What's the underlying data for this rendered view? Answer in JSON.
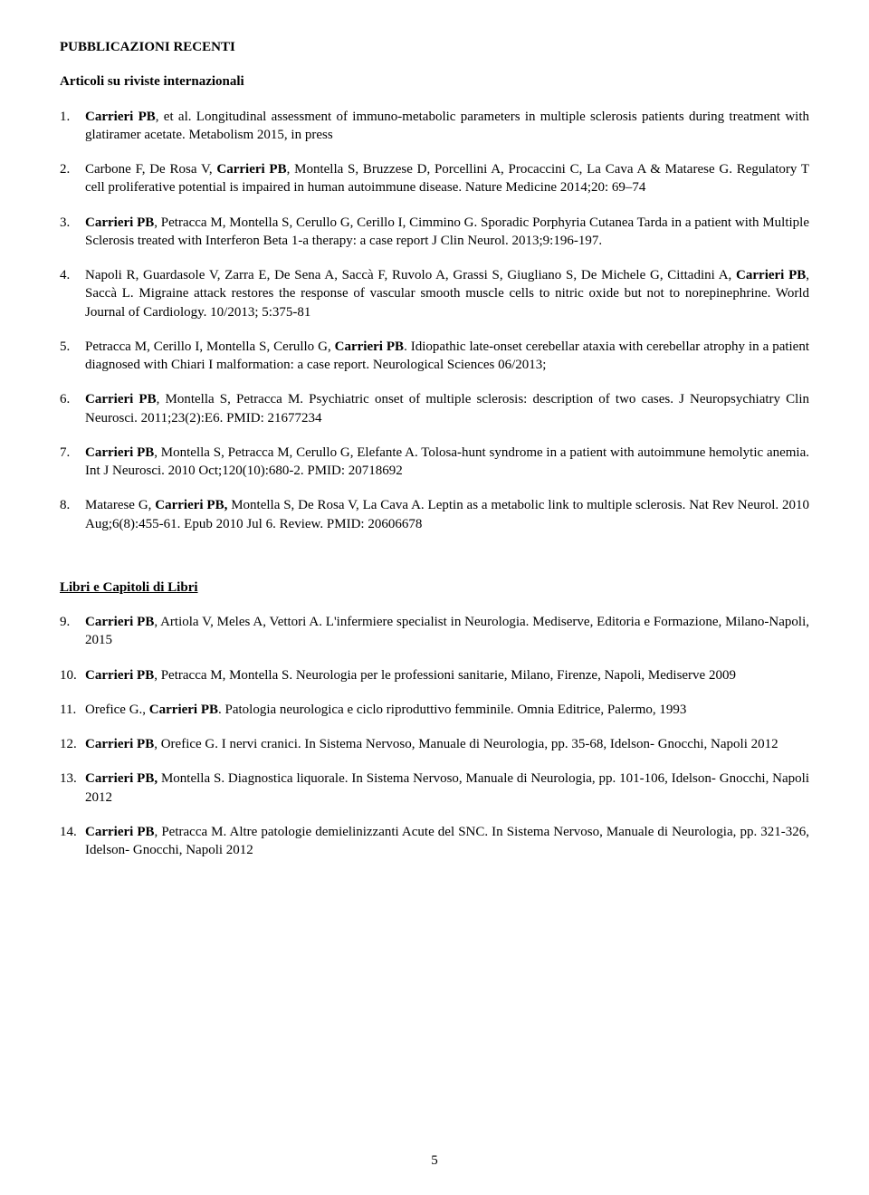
{
  "headings": {
    "main": "PUBBLICAZIONI RECENTI",
    "articles": "Articoli su riviste internazionali",
    "books": "Libri e Capitoli di Libri"
  },
  "articles": [
    {
      "pre": "",
      "bold1": "Carrieri PB",
      "post1": ", et al. Longitudinal assessment of immuno-metabolic parameters in multiple sclerosis patients   during treatment with glatiramer acetate. Metabolism 2015, in press"
    },
    {
      "pre": "Carbone F, De Rosa V, ",
      "bold1": "Carrieri PB",
      "post1": ",  Montella S, Bruzzese D,  Porcellini A, Procaccini C,  La Cava A & Matarese G. Regulatory T cell proliferative potential is impaired in human autoimmune disease.  Nature Medicine  2014;20: 69–74"
    },
    {
      "pre": "",
      "bold1": "Carrieri PB",
      "post1": ", Petracca M, Montella S, Cerullo G, Cerillo I, Cimmino G. Sporadic Porphyria Cutanea Tarda in a patient with Multiple Sclerosis treated with Interferon Beta 1-a therapy: a case report  J Clin Neurol. 2013;9:196-197."
    },
    {
      "pre": "Napoli R, Guardasole V, Zarra E, De Sena A, Saccà F, Ruvolo A, Grassi S, Giugliano S, De Michele G, Cittadini A, ",
      "bold1": "Carrieri PB",
      "post1": ", Saccà L. Migraine attack restores the response of vascular smooth muscle cells to nitric oxide but not to norepinephrine.  World Journal of Cardiology. 10/2013; 5:375-81"
    },
    {
      "pre": "Petracca M, Cerillo I, Montella S, Cerullo G, ",
      "bold1": "Carrieri PB",
      "post1": ". Idiopathic late-onset cerebellar ataxia with cerebellar atrophy in a patient diagnosed with Chiari I malformation: a case report.  Neurological Sciences 06/2013;"
    },
    {
      "pre": "",
      "bold1": "Carrieri PB",
      "post1": ", Montella S, Petracca M. Psychiatric onset of multiple sclerosis: description of two cases. J Neuropsychiatry Clin Neurosci. 2011;23(2):E6. PMID: 21677234"
    },
    {
      "pre": "",
      "bold1": "Carrieri PB",
      "post1": ", Montella S, Petracca M, Cerullo G, Elefante A. Tolosa-hunt syndrome in a patient with autoimmune hemolytic anemia. Int J Neurosci. 2010 Oct;120(10):680-2. PMID: 20718692"
    },
    {
      "pre": "Matarese G, ",
      "bold1": "Carrieri PB,",
      "post1": " Montella S, De Rosa V, La Cava A. Leptin as a metabolic link to multiple sclerosis. Nat Rev Neurol. 2010 Aug;6(8):455-61. Epub 2010 Jul 6. Review. PMID: 20606678"
    }
  ],
  "books": [
    {
      "pre": "",
      "bold1": "Carrieri PB",
      "post1": ", Artiola V, Meles A, Vettori A. L'infermiere specialist in Neurologia. Mediserve, Editoria e Formazione, Milano-Napoli, 2015"
    },
    {
      "pre": "",
      "bold1": "Carrieri PB",
      "post1": ", Petracca M, Montella S. Neurologia per le professioni sanitarie, Milano, Firenze, Napoli, Mediserve  2009"
    },
    {
      "pre": " Orefice G., ",
      "bold1": "Carrieri PB",
      "post1": ". Patologia neurologica e ciclo riproduttivo femminile. Omnia Editrice, Palermo, 1993"
    },
    {
      "pre": "",
      "bold1": "Carrieri PB",
      "post1": ",  Orefice G. I nervi cranici. In Sistema Nervoso, Manuale di Neurologia, pp. 35-68,  Idelson- Gnocchi, Napoli 2012"
    },
    {
      "pre": "",
      "bold1": "Carrieri PB,",
      "post1": "  Montella S. Diagnostica liquorale. In Sistema Nervoso, Manuale di Neurologia, pp. 101-106, Idelson- Gnocchi, Napoli 2012"
    },
    {
      "pre": "",
      "bold1": "Carrieri PB",
      "post1": ",  Petracca M. Altre patologie demielinizzanti Acute del SNC. In Sistema Nervoso, Manuale di Neurologia, pp. 321-326,  Idelson- Gnocchi, Napoli 2012"
    }
  ],
  "pageNumber": "5"
}
